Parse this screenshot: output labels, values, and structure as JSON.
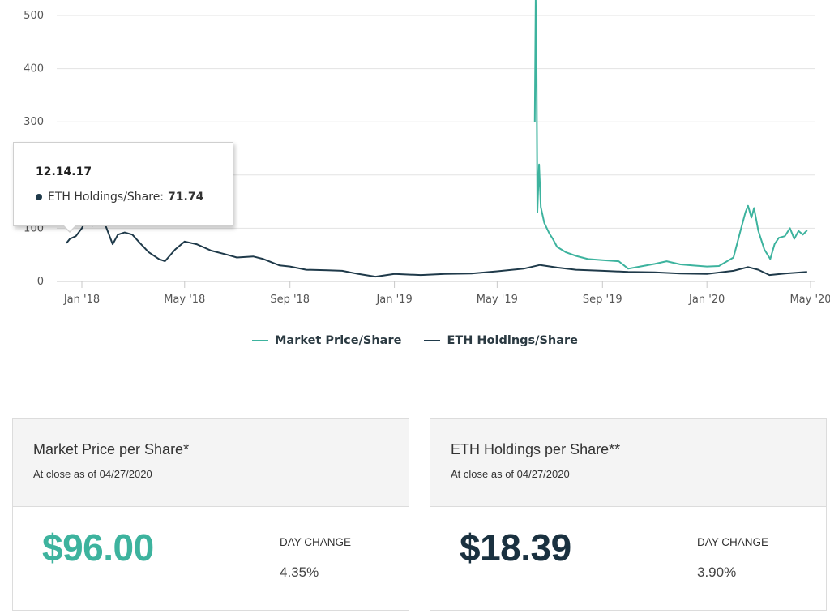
{
  "chart_data": {
    "type": "line",
    "x_label": "",
    "y_label": "",
    "ylim": [
      0,
      500
    ],
    "y_ticks": [
      0,
      100,
      200,
      300,
      400,
      500
    ],
    "x_ticks": [
      {
        "date": "2018-01-01",
        "label": "Jan '18"
      },
      {
        "date": "2018-05-01",
        "label": "May '18"
      },
      {
        "date": "2018-09-01",
        "label": "Sep '18"
      },
      {
        "date": "2019-01-01",
        "label": "Jan '19"
      },
      {
        "date": "2019-05-01",
        "label": "May '19"
      },
      {
        "date": "2019-09-01",
        "label": "Sep '19"
      },
      {
        "date": "2020-01-01",
        "label": "Jan '20"
      },
      {
        "date": "2020-05-01",
        "label": "May '20"
      }
    ],
    "grid": true,
    "legend_position": "bottom-center",
    "series": [
      {
        "name": "Market Price/Share",
        "color": "#3db39e",
        "points": [
          [
            "2019-06-14",
            300
          ],
          [
            "2019-06-15",
            530
          ],
          [
            "2019-06-16",
            400
          ],
          [
            "2019-06-17",
            130
          ],
          [
            "2019-06-19",
            220
          ],
          [
            "2019-06-21",
            140
          ],
          [
            "2019-06-25",
            110
          ],
          [
            "2019-07-01",
            90
          ],
          [
            "2019-07-05",
            80
          ],
          [
            "2019-07-10",
            65
          ],
          [
            "2019-07-20",
            55
          ],
          [
            "2019-08-01",
            48
          ],
          [
            "2019-08-15",
            42
          ],
          [
            "2019-09-01",
            40
          ],
          [
            "2019-09-20",
            38
          ],
          [
            "2019-10-01",
            24
          ],
          [
            "2019-10-15",
            28
          ],
          [
            "2019-11-01",
            33
          ],
          [
            "2019-11-15",
            38
          ],
          [
            "2019-12-01",
            32
          ],
          [
            "2019-12-15",
            30
          ],
          [
            "2020-01-01",
            28
          ],
          [
            "2020-01-15",
            29
          ],
          [
            "2020-02-01",
            45
          ],
          [
            "2020-02-10",
            100
          ],
          [
            "2020-02-15",
            130
          ],
          [
            "2020-02-18",
            142
          ],
          [
            "2020-02-22",
            120
          ],
          [
            "2020-02-25",
            138
          ],
          [
            "2020-03-01",
            95
          ],
          [
            "2020-03-08",
            60
          ],
          [
            "2020-03-15",
            42
          ],
          [
            "2020-03-20",
            70
          ],
          [
            "2020-03-25",
            82
          ],
          [
            "2020-04-01",
            85
          ],
          [
            "2020-04-07",
            100
          ],
          [
            "2020-04-12",
            80
          ],
          [
            "2020-04-17",
            95
          ],
          [
            "2020-04-22",
            88
          ],
          [
            "2020-04-27",
            96
          ]
        ]
      },
      {
        "name": "ETH Holdings/Share",
        "color": "#1f3a4a",
        "points": [
          [
            "2017-12-14",
            72
          ],
          [
            "2017-12-18",
            80
          ],
          [
            "2017-12-25",
            85
          ],
          [
            "2018-01-01",
            100
          ],
          [
            "2018-01-10",
            130
          ],
          [
            "2018-01-14",
            105
          ],
          [
            "2018-01-20",
            115
          ],
          [
            "2018-01-28",
            108
          ],
          [
            "2018-02-06",
            70
          ],
          [
            "2018-02-12",
            88
          ],
          [
            "2018-02-20",
            92
          ],
          [
            "2018-03-01",
            88
          ],
          [
            "2018-03-10",
            72
          ],
          [
            "2018-03-20",
            55
          ],
          [
            "2018-04-01",
            42
          ],
          [
            "2018-04-08",
            38
          ],
          [
            "2018-04-20",
            60
          ],
          [
            "2018-05-01",
            75
          ],
          [
            "2018-05-15",
            70
          ],
          [
            "2018-06-01",
            58
          ],
          [
            "2018-06-20",
            50
          ],
          [
            "2018-07-01",
            45
          ],
          [
            "2018-07-20",
            47
          ],
          [
            "2018-08-01",
            42
          ],
          [
            "2018-08-20",
            30
          ],
          [
            "2018-09-01",
            28
          ],
          [
            "2018-09-20",
            22
          ],
          [
            "2018-10-15",
            21
          ],
          [
            "2018-11-01",
            20
          ],
          [
            "2018-11-20",
            14
          ],
          [
            "2018-12-10",
            9
          ],
          [
            "2019-01-01",
            14
          ],
          [
            "2019-02-01",
            12
          ],
          [
            "2019-03-01",
            14
          ],
          [
            "2019-04-01",
            15
          ],
          [
            "2019-05-01",
            19
          ],
          [
            "2019-06-01",
            24
          ],
          [
            "2019-06-20",
            31
          ],
          [
            "2019-07-10",
            26
          ],
          [
            "2019-08-01",
            22
          ],
          [
            "2019-09-01",
            20
          ],
          [
            "2019-10-01",
            18
          ],
          [
            "2019-11-01",
            17
          ],
          [
            "2019-12-01",
            15
          ],
          [
            "2020-01-01",
            14
          ],
          [
            "2020-02-01",
            20
          ],
          [
            "2020-02-18",
            27
          ],
          [
            "2020-03-01",
            22
          ],
          [
            "2020-03-14",
            12
          ],
          [
            "2020-04-01",
            15
          ],
          [
            "2020-04-27",
            18
          ]
        ]
      }
    ]
  },
  "tooltip": {
    "date": "12.14.17",
    "series_name": "ETH Holdings/Share:",
    "value": "71.74",
    "dot_color": "#1f3a4a"
  },
  "cards": [
    {
      "title": "Market Price per Share*",
      "subtitle": "At close as of 04/27/2020",
      "value": "$96.00",
      "value_color": "#3db39e",
      "day_change_label": "DAY CHANGE",
      "day_change_value": "4.35%"
    },
    {
      "title": "ETH Holdings per Share**",
      "subtitle": "At close as of 04/27/2020",
      "value": "$18.39",
      "value_color": "#1a3140",
      "day_change_label": "DAY CHANGE",
      "day_change_value": "3.90%"
    }
  ]
}
